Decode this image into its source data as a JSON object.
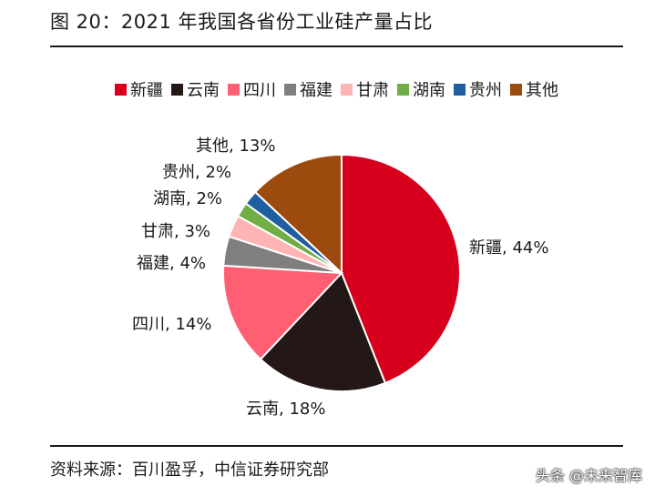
{
  "figure": {
    "title": "图 20：2021 年我国各省份工业硅产量占比",
    "source": "资料来源：百川盈孚，中信证券研究部"
  },
  "watermark": {
    "text": "头条 @未来智库"
  },
  "chart_data": {
    "type": "pie",
    "title": "2021 年我国各省份工业硅产量占比",
    "legend_position": "top",
    "slices": [
      {
        "label": "新疆",
        "value": 44,
        "data_label": "新疆, 44%",
        "color": "#d6001c"
      },
      {
        "label": "云南",
        "value": 18,
        "data_label": "云南, 18%",
        "color": "#231815"
      },
      {
        "label": "四川",
        "value": 14,
        "data_label": "四川, 14%",
        "color": "#ff5f73"
      },
      {
        "label": "福建",
        "value": 4,
        "data_label": "福建, 4%",
        "color": "#7f7f7f"
      },
      {
        "label": "甘肃",
        "value": 3,
        "data_label": "甘肃, 3%",
        "color": "#ffb4b4"
      },
      {
        "label": "湖南",
        "value": 2,
        "data_label": "湖南, 2%",
        "color": "#70ad47"
      },
      {
        "label": "贵州",
        "value": 2,
        "data_label": "贵州, 2%",
        "color": "#1f5fa0"
      },
      {
        "label": "其他",
        "value": 13,
        "data_label": "其他, 13%",
        "color": "#9c4a0e"
      }
    ]
  }
}
